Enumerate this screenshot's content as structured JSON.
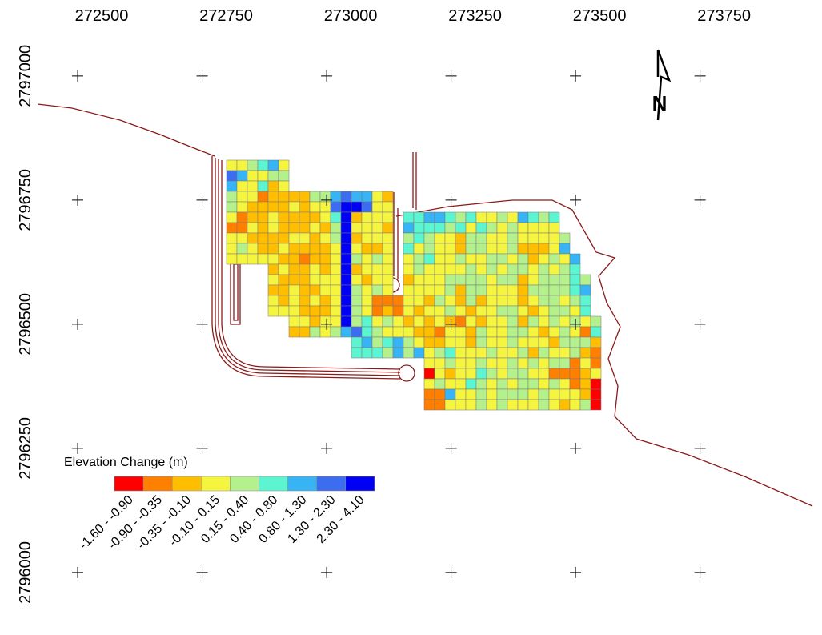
{
  "map": {
    "xticks": [
      272500,
      272750,
      273000,
      273250,
      273500,
      273750
    ],
    "yticks": [
      2797000,
      2796750,
      2796500,
      2796250,
      2796000
    ],
    "xlim": [
      272344,
      273995
    ],
    "ylim": [
      2795874,
      2797153
    ],
    "north": "N",
    "legend": {
      "title": "Elevation Change (m)",
      "classes": [
        {
          "label": "-1.60 - -0.90",
          "color": "#ff0000"
        },
        {
          "label": "-0.90 - -0.35",
          "color": "#ff7f00"
        },
        {
          "label": "-0.35 - -0.10",
          "color": "#ffbf00"
        },
        {
          "label": "-0.10 - 0.15",
          "color": "#f5f540"
        },
        {
          "label": "0.15 - 0.40",
          "color": "#b4f08c"
        },
        {
          "label": "0.40 - 0.80",
          "color": "#5cf5d2"
        },
        {
          "label": "0.80 - 1.30",
          "color": "#36b4f5"
        },
        {
          "label": "1.30 - 2.30",
          "color": "#3c6cf0"
        },
        {
          "label": "2.30 - 4.10",
          "color": "#0000f5"
        }
      ]
    },
    "cells": [
      "334563",
      "763344",
      "633523",
      "4331222244676632",
      "4322223233788733",
      "3122322223582333 556654533436545",
      "1132322232483332 655545354343333",
      "3322223323482333 4543324433433334",
      "3432232222383223 5343324433422236",
      "3333322122384343 34533433443423436",
      "    232232382333 34333343434434345",
      "    322233383233 233344443442344454",
      "    223223384343 333342443332444456",
      "    3232323843111332432423332344345",
      "    3332223843121323343233443234435",
      "      332338453432323213233424343434",
      "      224346754333221332433443234315",
      "            564564322332433433324442",
      "            555464634533343342433421",
      "                   33433433434344131",
      "                   03233543443311123",
      "                   34335434344343120",
      "                   11633434443433320",
      "                   11333434333432340"
    ]
  }
}
